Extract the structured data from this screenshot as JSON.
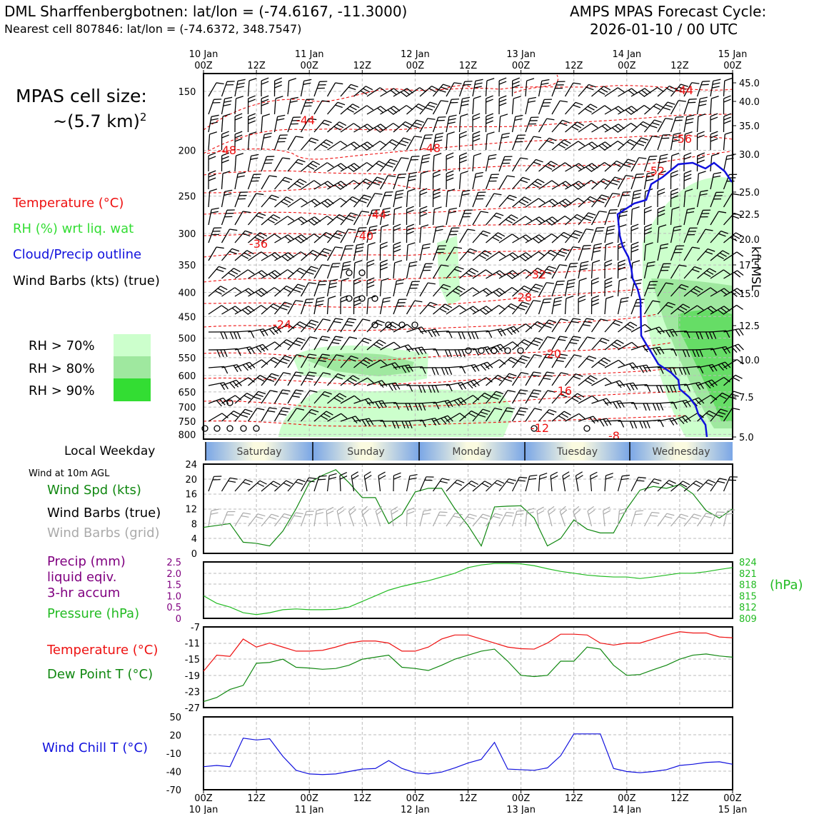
{
  "header": {
    "station": "DML Sharffenbergbotnen: lat/lon = (-74.6167, -11.3000)",
    "nearest": "Nearest cell 807846: lat/lon = (-74.6372, 348.7547)",
    "cycle_line1": "AMPS MPAS Forecast Cycle:",
    "cycle_line2": "2026-01-10 / 00 UTC"
  },
  "cell_size": {
    "line1": "MPAS cell size:",
    "line2": "~(5.7 km)",
    "sup": "2"
  },
  "legend_main": {
    "temperature": "Temperature (°C)",
    "rh": "RH (%) wrt liq. wat",
    "cloud": "Cloud/Precip outline",
    "wind": "Wind Barbs (kts) (true)"
  },
  "rh_legend": [
    {
      "label": "RH > 70%",
      "color": "#ccffcc"
    },
    {
      "label": "RH > 80%",
      "color": "#9fe89f"
    },
    {
      "label": "RH > 90%",
      "color": "#33dd33"
    }
  ],
  "time_axis": {
    "top": [
      [
        "10 Jan",
        "00Z"
      ],
      [
        "",
        "12Z"
      ],
      [
        "11 Jan",
        "00Z"
      ],
      [
        "",
        "12Z"
      ],
      [
        "12 Jan",
        "00Z"
      ],
      [
        "",
        "12Z"
      ],
      [
        "13 Jan",
        "00Z"
      ],
      [
        "",
        "12Z"
      ],
      [
        "14 Jan",
        "00Z"
      ],
      [
        "",
        "12Z"
      ],
      [
        "15 Jan",
        "00Z"
      ]
    ],
    "bottom": [
      [
        "00Z",
        "10 Jan"
      ],
      [
        "12Z",
        ""
      ],
      [
        "00Z",
        "11 Jan"
      ],
      [
        "12Z",
        ""
      ],
      [
        "00Z",
        "12 Jan"
      ],
      [
        "12Z",
        ""
      ],
      [
        "00Z",
        "13 Jan"
      ],
      [
        "12Z",
        ""
      ],
      [
        "00Z",
        "14 Jan"
      ],
      [
        "12Z",
        ""
      ],
      [
        "00Z",
        "15 Jan"
      ]
    ]
  },
  "weekday": {
    "label": "Local Weekday",
    "days": [
      "Saturday",
      "Sunday",
      "Monday",
      "Tuesday",
      "Wednesday"
    ]
  },
  "profile": {
    "pressure_ticks": [
      "150",
      "200",
      "250",
      "300",
      "350",
      "400",
      "450",
      "500",
      "550",
      "600",
      "650",
      "700",
      "750",
      "800"
    ],
    "height_ticks": [
      "45.0",
      "40.0",
      "35.0",
      "30.0",
      "25.0",
      "22.5",
      "20.0",
      "17.5",
      "15.0",
      "12.5",
      "10.0",
      "7.5",
      "5.0"
    ],
    "height_label": "kft MSL",
    "temp_labels": [
      "-44",
      "-44",
      "-48",
      "-48",
      "-56",
      "-52",
      "-44",
      "-40",
      "-36",
      "-32",
      "-28",
      "-24",
      "-20",
      "-16",
      "-12",
      "-8"
    ]
  },
  "wind_panel": {
    "title": "Wind at 10m AGL",
    "l1": "Wind Spd (kts)",
    "l2": "Wind Barbs (true)",
    "l3": "Wind Barbs (grid)",
    "y_ticks": [
      "0",
      "4",
      "8",
      "12",
      "16",
      "20",
      "24"
    ]
  },
  "precip_panel": {
    "l1": "Precip (mm)",
    "l2": "liquid eqiv.",
    "l3": "3-hr accum",
    "l4": "Pressure (hPa)",
    "left_ticks": [
      "0",
      "0.5",
      "1.0",
      "1.5",
      "2.0",
      "2.5"
    ],
    "right_ticks": [
      "809",
      "812",
      "815",
      "818",
      "821",
      "824"
    ],
    "right_unit": "(hPa)"
  },
  "temp_panel": {
    "l1": "Temperature (°C)",
    "l2": "Dew Point T (°C)",
    "y_ticks": [
      "-27",
      "-23",
      "-19",
      "-15",
      "-11",
      "-7"
    ]
  },
  "chill_panel": {
    "l1": "Wind Chill T (°C)",
    "y_ticks": [
      "-70",
      "-40",
      "-10",
      "20",
      "50"
    ]
  },
  "colors": {
    "temp": "#ee1111",
    "rh_text": "#33dd33",
    "cloud": "#1111dd",
    "wind_spd": "#118811",
    "precip": "#800080",
    "pressure": "#22bb22",
    "dew": "#118811",
    "chill": "#1111dd",
    "grid_barb": "#aaaaaa"
  },
  "chart_data": [
    {
      "type": "line",
      "title": "Wind at 10m AGL",
      "ylabel": "Wind Spd (kts)",
      "ylim": [
        0,
        24
      ],
      "x_hours": [
        0,
        3,
        6,
        9,
        12,
        15,
        18,
        21,
        24,
        27,
        30,
        33,
        36,
        39,
        42,
        45,
        48,
        51,
        54,
        57,
        60,
        63,
        66,
        69,
        72,
        75,
        78,
        81,
        84,
        87,
        90,
        93,
        96,
        99,
        102,
        105,
        108,
        111,
        114,
        117,
        120
      ],
      "series": [
        {
          "name": "Wind Spd",
          "values": [
            7,
            7.5,
            8,
            3,
            2.7,
            2,
            6,
            12,
            19,
            21,
            22.5,
            19,
            15,
            15,
            8,
            10.5,
            16.5,
            17.5,
            17.5,
            12,
            7.5,
            2,
            12.5,
            12.7,
            12.8,
            9.5,
            2,
            4,
            9,
            6.5,
            5.5,
            5.5,
            12,
            17,
            18,
            17.5,
            18.5,
            16,
            11.5,
            9.5,
            12
          ]
        }
      ]
    },
    {
      "type": "line",
      "title": "Pressure (hPa)",
      "ylim": [
        809,
        824
      ],
      "x_hours": [
        0,
        3,
        6,
        9,
        12,
        15,
        18,
        21,
        24,
        27,
        30,
        33,
        36,
        39,
        42,
        45,
        48,
        51,
        54,
        57,
        60,
        63,
        66,
        69,
        72,
        75,
        78,
        81,
        84,
        87,
        90,
        93,
        96,
        99,
        102,
        105,
        108,
        111,
        114,
        117,
        120
      ],
      "series": [
        {
          "name": "Pressure",
          "values": [
            815,
            813,
            812,
            810.5,
            810,
            810.5,
            811.3,
            811.5,
            811.3,
            811.3,
            811.4,
            812,
            813.5,
            815,
            816.5,
            817.5,
            818.3,
            819,
            820,
            821,
            822.5,
            823.2,
            823.6,
            823.6,
            823.5,
            823,
            822.2,
            821.5,
            821,
            820.5,
            820.2,
            820,
            820,
            819.6,
            820,
            820.5,
            821,
            821,
            821.4,
            822,
            822.5
          ]
        },
        {
          "name": "Precip",
          "values": []
        }
      ]
    },
    {
      "type": "line",
      "title": "Temperature / Dew Point (°C)",
      "ylim": [
        -27,
        -7
      ],
      "x_hours": [
        0,
        3,
        6,
        9,
        12,
        15,
        18,
        21,
        24,
        27,
        30,
        33,
        36,
        39,
        42,
        45,
        48,
        51,
        54,
        57,
        60,
        63,
        66,
        69,
        72,
        75,
        78,
        81,
        84,
        87,
        90,
        93,
        96,
        99,
        102,
        105,
        108,
        111,
        114,
        117,
        120
      ],
      "series": [
        {
          "name": "Temperature",
          "values": [
            -18,
            -14,
            -14.3,
            -10,
            -12,
            -11,
            -12,
            -13,
            -13,
            -12.8,
            -12,
            -11,
            -10.5,
            -10.5,
            -11,
            -13,
            -13,
            -12,
            -10,
            -9,
            -9,
            -10,
            -11,
            -12,
            -12.4,
            -12.5,
            -11,
            -8.8,
            -8.8,
            -9,
            -11,
            -11.5,
            -11,
            -11,
            -10,
            -9,
            -8.2,
            -8.5,
            -8.5,
            -9.5,
            -9.7
          ]
        },
        {
          "name": "Dew Point",
          "values": [
            -25.5,
            -24.5,
            -22.5,
            -21.5,
            -16,
            -15.8,
            -15,
            -17,
            -17.2,
            -17.5,
            -17.3,
            -16.5,
            -15,
            -14.5,
            -14,
            -17,
            -17.3,
            -17.8,
            -16.5,
            -15,
            -14,
            -13,
            -12.5,
            -15.5,
            -19,
            -19.3,
            -19,
            -15.5,
            -15.5,
            -12,
            -12.5,
            -16.5,
            -19,
            -18.8,
            -17.6,
            -16.5,
            -15,
            -14,
            -13.7,
            -14.2,
            -14.5
          ]
        }
      ]
    },
    {
      "type": "line",
      "title": "Wind Chill T (°C)",
      "ylim": [
        -70,
        50
      ],
      "x_hours": [
        0,
        3,
        6,
        9,
        12,
        15,
        18,
        21,
        24,
        27,
        30,
        33,
        36,
        39,
        42,
        45,
        48,
        51,
        54,
        57,
        60,
        63,
        66,
        69,
        72,
        75,
        78,
        81,
        84,
        87,
        90,
        93,
        96,
        99,
        102,
        105,
        108,
        111,
        114,
        117,
        120
      ],
      "series": [
        {
          "name": "Wind Chill",
          "values": [
            -32,
            -30,
            -32,
            15,
            12,
            14,
            -15,
            -38,
            -44,
            -45,
            -44,
            -40,
            -36,
            -35,
            -22,
            -35,
            -42,
            -44,
            -41,
            -34,
            -26,
            -20,
            8,
            -36,
            -37,
            -38,
            -34,
            -14,
            22,
            22,
            22,
            -35,
            -40,
            -42,
            -40,
            -37,
            -30,
            -28,
            -25,
            -24,
            -28
          ]
        }
      ]
    }
  ]
}
